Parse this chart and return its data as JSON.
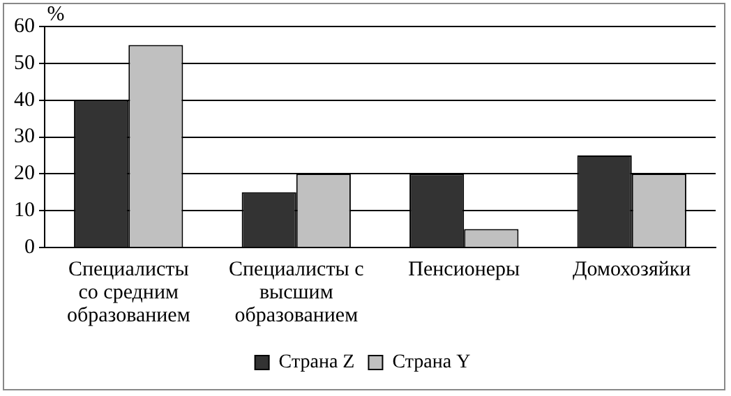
{
  "chart_data": {
    "type": "bar",
    "ylabel": "%",
    "categories": [
      "Специалисты со средним образованием",
      "Специалисты с высшим образованием",
      "Пенсионеры",
      "Домохозяйки"
    ],
    "series": [
      {
        "name": "Страна Z",
        "color": "#333333",
        "values": [
          40,
          15,
          20,
          25
        ]
      },
      {
        "name": "Страна Y",
        "color": "#c0c0c0",
        "values": [
          55,
          20,
          5,
          20
        ]
      }
    ],
    "ylim": [
      0,
      60
    ],
    "yticks": [
      0,
      10,
      20,
      30,
      40,
      50,
      60
    ],
    "grid": "y",
    "legend": "bottom"
  }
}
